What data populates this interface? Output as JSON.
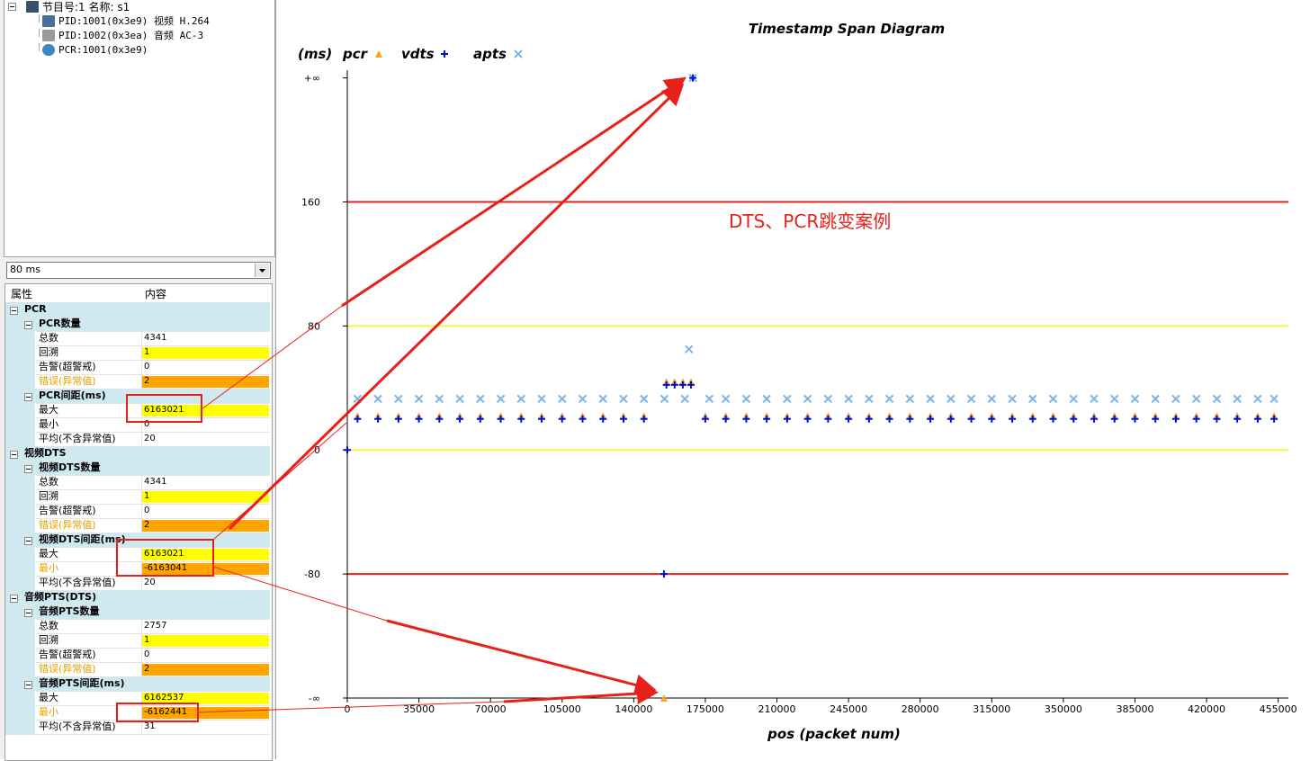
{
  "tree": {
    "items": [
      {
        "label": "节目号:1 名称: s1",
        "level": 0
      },
      {
        "label": "PID:1001(0x3e9) 视频 H.264",
        "level": 1
      },
      {
        "label": "PID:1002(0x3ea) 音频 AC-3",
        "level": 1
      },
      {
        "label": "PCR:1001(0x3e9)",
        "level": 1
      }
    ]
  },
  "dropdown": {
    "value": "80 ms"
  },
  "grid": {
    "columns": [
      "属性",
      "内容"
    ],
    "rows": [
      {
        "label": "PCR",
        "level": 0
      },
      {
        "label": "PCR数量",
        "level": 1
      },
      {
        "label": "总数",
        "value": "4341",
        "level": 2
      },
      {
        "label": "回溯",
        "value": "1",
        "level": 2,
        "style": "yellow"
      },
      {
        "label": "告警(超警戒)",
        "value": "0",
        "level": 2
      },
      {
        "label": "错误(异常值)",
        "value": "2",
        "level": 2,
        "style": "orange"
      },
      {
        "label": "PCR间距(ms)",
        "level": 1
      },
      {
        "label": "最大",
        "value": "6163021",
        "level": 2,
        "style": "yellow"
      },
      {
        "label": "最小",
        "value": "0",
        "level": 2
      },
      {
        "label": "平均(不含异常值)",
        "value": "20",
        "level": 2
      },
      {
        "label": "视频DTS",
        "level": 0
      },
      {
        "label": "视频DTS数量",
        "level": 1
      },
      {
        "label": "总数",
        "value": "4341",
        "level": 2
      },
      {
        "label": "回溯",
        "value": "1",
        "level": 2,
        "style": "yellow"
      },
      {
        "label": "告警(超警戒)",
        "value": "0",
        "level": 2
      },
      {
        "label": "错误(异常值)",
        "value": "2",
        "level": 2,
        "style": "orange"
      },
      {
        "label": "视频DTS间距(ms)",
        "level": 1
      },
      {
        "label": "最大",
        "value": "6163021",
        "level": 2,
        "style": "yellow"
      },
      {
        "label": "最小",
        "value": "-6163041",
        "level": 2,
        "style": "orange"
      },
      {
        "label": "平均(不含异常值)",
        "value": "20",
        "level": 2
      },
      {
        "label": "音频PTS(DTS)",
        "level": 0
      },
      {
        "label": "音频PTS数量",
        "level": 1
      },
      {
        "label": "总数",
        "value": "2757",
        "level": 2
      },
      {
        "label": "回溯",
        "value": "1",
        "level": 2,
        "style": "yellow"
      },
      {
        "label": "告警(超警戒)",
        "value": "0",
        "level": 2
      },
      {
        "label": "错误(异常值)",
        "value": "2",
        "level": 2,
        "style": "orange"
      },
      {
        "label": "音频PTS间距(ms)",
        "level": 1
      },
      {
        "label": "最大",
        "value": "6162537",
        "level": 2,
        "style": "yellow"
      },
      {
        "label": "最小",
        "value": "-6162441",
        "level": 2,
        "style": "orange"
      },
      {
        "label": "平均(不含异常值)",
        "value": "31",
        "level": 2
      }
    ]
  },
  "chart": {
    "type": "scatter",
    "title": "Timestamp Span Diagram",
    "y_unit": "(ms)",
    "x_label": "pos (packet num)",
    "annotation": "DTS、PCR跳变案例",
    "xlim": [
      0,
      460000
    ],
    "xticks": [
      0,
      35000,
      70000,
      105000,
      140000,
      175000,
      210000,
      245000,
      280000,
      315000,
      350000,
      385000,
      420000,
      455000
    ],
    "ylim": [
      -160,
      245
    ],
    "yticks": [
      {
        "value": -160,
        "label": "-∞"
      },
      -80,
      0,
      80,
      160,
      {
        "value": 240,
        "label": "+∞"
      }
    ],
    "reference_lines": [
      {
        "value": 160,
        "color": "#e8201a"
      },
      {
        "value": 80,
        "color": "#f5f53a"
      },
      {
        "value": 0,
        "color": "#f5f53a"
      },
      {
        "value": -80,
        "color": "#e8201a"
      }
    ],
    "series": [
      {
        "name": "apts",
        "color": "#7db6e8",
        "marker": "x",
        "x": [
          5000,
          15000,
          25000,
          35000,
          45000,
          55000,
          65000,
          75000,
          85000,
          95000,
          105000,
          115000,
          125000,
          135000,
          145000,
          155000,
          165000,
          167000,
          168900,
          177000,
          185000,
          195000,
          205000,
          215000,
          225000,
          235000,
          245000,
          255000,
          265000,
          275000,
          285000,
          295000,
          305000,
          315000,
          325000,
          335000,
          345000,
          355000,
          365000,
          375000,
          385000,
          395000,
          405000,
          415000,
          425000,
          435000,
          445000,
          453000
        ],
        "values": [
          33,
          33,
          33,
          33,
          33,
          33,
          33,
          33,
          33,
          33,
          33,
          33,
          33,
          33,
          33,
          33,
          33,
          65,
          240,
          33,
          33,
          33,
          33,
          33,
          33,
          33,
          33,
          33,
          33,
          33,
          33,
          33,
          33,
          33,
          33,
          33,
          33,
          33,
          33,
          33,
          33,
          33,
          33,
          33,
          33,
          33,
          33,
          33
        ]
      },
      {
        "name": "pcr",
        "color": "#f5a623",
        "marker": "triangle",
        "x": [
          5000,
          15000,
          25000,
          35000,
          45000,
          55000,
          65000,
          75000,
          85000,
          95000,
          105000,
          115000,
          125000,
          135000,
          145000,
          154800,
          156000,
          160000,
          164000,
          168000,
          175000,
          185000,
          195000,
          205000,
          215000,
          225000,
          235000,
          245000,
          255000,
          265000,
          275000,
          285000,
          295000,
          305000,
          315000,
          325000,
          335000,
          345000,
          355000,
          365000,
          375000,
          385000,
          395000,
          405000,
          415000,
          425000,
          435000,
          445000,
          453000
        ],
        "values": [
          22,
          22,
          22,
          22,
          22,
          22,
          22,
          22,
          22,
          22,
          22,
          22,
          22,
          22,
          22,
          -160,
          44,
          44,
          44,
          44,
          22,
          22,
          22,
          22,
          22,
          22,
          22,
          22,
          22,
          22,
          22,
          22,
          22,
          22,
          22,
          22,
          22,
          22,
          22,
          22,
          22,
          22,
          22,
          22,
          22,
          22,
          22,
          22,
          22
        ]
      },
      {
        "name": "vdts",
        "color": "#0010d0",
        "marker": "plus",
        "x": [
          0,
          5000,
          15000,
          25000,
          35000,
          45000,
          55000,
          65000,
          75000,
          85000,
          95000,
          105000,
          115000,
          125000,
          135000,
          145000,
          154800,
          156000,
          160000,
          164000,
          168000,
          168900,
          175000,
          185000,
          195000,
          205000,
          215000,
          225000,
          235000,
          245000,
          255000,
          265000,
          275000,
          285000,
          295000,
          305000,
          315000,
          325000,
          335000,
          345000,
          355000,
          365000,
          375000,
          385000,
          395000,
          405000,
          415000,
          425000,
          435000,
          445000,
          453000
        ],
        "values": [
          0,
          20,
          20,
          20,
          20,
          20,
          20,
          20,
          20,
          20,
          20,
          20,
          20,
          20,
          20,
          20,
          -80,
          42,
          42,
          42,
          42,
          240,
          20,
          20,
          20,
          20,
          20,
          20,
          20,
          20,
          20,
          20,
          20,
          20,
          20,
          20,
          20,
          20,
          20,
          20,
          20,
          20,
          20,
          20,
          20,
          20,
          20,
          20,
          20,
          20,
          20
        ]
      }
    ]
  }
}
